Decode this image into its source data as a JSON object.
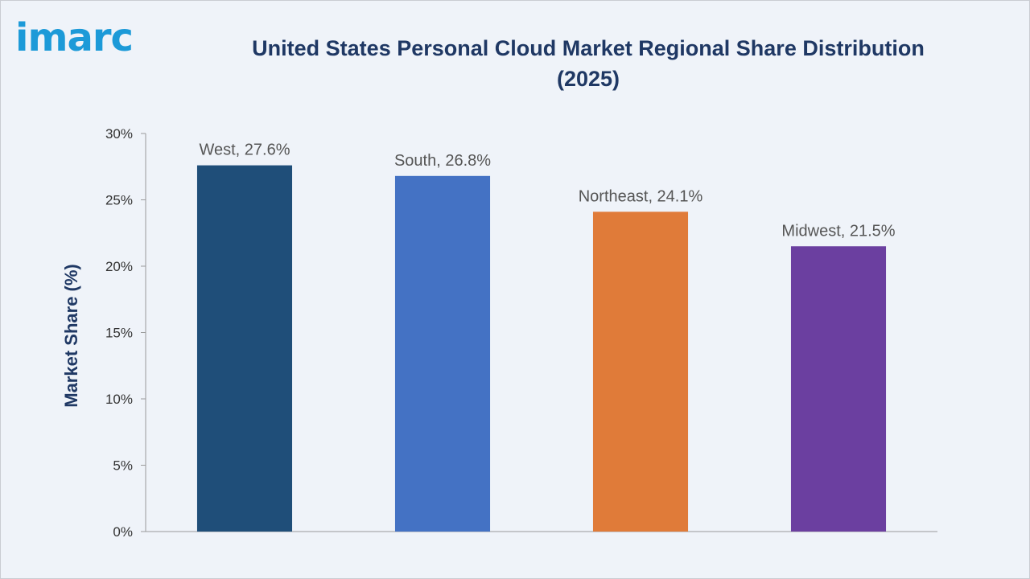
{
  "brand": {
    "logo_text": "imarc",
    "logo_color": "#1c9ad8"
  },
  "chart_data": {
    "type": "bar",
    "title": "United States Personal Cloud Market Regional Share Distribution (2025)",
    "title_lines": [
      "United States Personal Cloud Market Regional Share Distribution",
      "(2025)"
    ],
    "xlabel": "",
    "ylabel": "Market Share (%)",
    "ylim": [
      0,
      30
    ],
    "yticks": [
      0,
      5,
      10,
      15,
      20,
      25,
      30
    ],
    "ytick_labels": [
      "0%",
      "5%",
      "10%",
      "15%",
      "20%",
      "25%",
      "30%"
    ],
    "grid": false,
    "legend": "none",
    "categories": [
      "West",
      "South",
      "Northeast",
      "Midwest"
    ],
    "values": [
      27.6,
      26.8,
      24.1,
      21.5
    ],
    "data_labels": [
      "West, 27.6%",
      "South, 26.8%",
      "Northeast, 24.1%",
      "Midwest, 21.5%"
    ],
    "colors": [
      "#1f4e79",
      "#4472c4",
      "#e07b39",
      "#6b3fa0"
    ]
  }
}
